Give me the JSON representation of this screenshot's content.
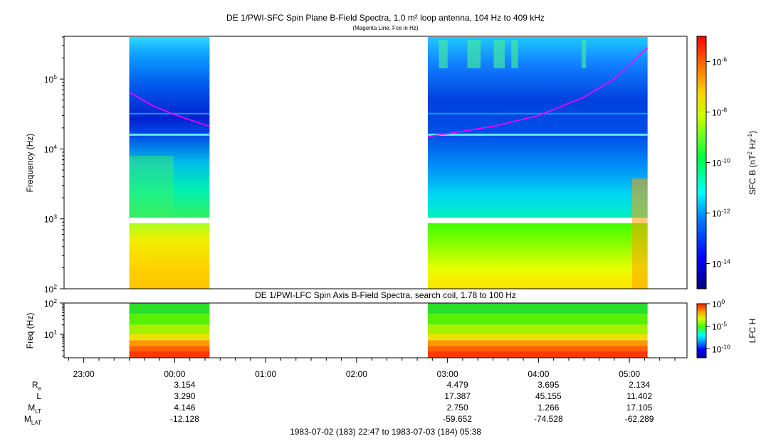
{
  "chart_data": [
    {
      "type": "heatmap",
      "title": "DE 1/PWI-SFC  Spin Plane B-Field Spectra, 1.0 m² loop antenna, 104 Hz to 409 kHz",
      "subtitle": "(Magenta Line: Fce in Hz)",
      "ylabel": "Frequency (Hz)",
      "yscale": "log",
      "ylim": [
        100,
        409000
      ],
      "y_ticks": [
        "10^2",
        "10^3",
        "10^4",
        "10^5"
      ],
      "colorbar": {
        "label": "SFC B (nT^2 Hz^-1)",
        "scale": "log",
        "range": [
          1e-15,
          1e-05
        ],
        "ticks": [
          "10^-14",
          "10^-12",
          "10^-10",
          "10^-8",
          "10^-6"
        ]
      },
      "data_blocks": [
        {
          "start": "23:30",
          "end": "00:23"
        },
        {
          "start": "02:47",
          "end": "05:12"
        }
      ],
      "series": [
        {
          "name": "Fce",
          "color": "#ff00ff",
          "segments": [
            {
              "x": [
                "23:30",
                "23:45",
                "00:00",
                "00:15",
                "00:23"
              ],
              "y": [
                65000,
                42000,
                31000,
                24000,
                21000
              ]
            },
            {
              "x": [
                "02:47",
                "03:00",
                "03:30",
                "04:00",
                "04:30",
                "04:50",
                "05:12"
              ],
              "y": [
                15000,
                16500,
                21000,
                30000,
                55000,
                100000,
                280000
              ]
            }
          ]
        }
      ]
    },
    {
      "type": "heatmap",
      "title": "DE 1/PWI-LFC  Spin Axis B-Field Spectra, search coil, 1.78 to 100 Hz",
      "ylabel": "Freq (Hz)",
      "yscale": "log",
      "ylim": [
        1.78,
        100
      ],
      "y_ticks": [
        "10^1",
        "10^2"
      ],
      "colorbar": {
        "label": "LFC H",
        "scale": "log",
        "range": [
          1e-12,
          1
        ],
        "ticks": [
          "10^0",
          "10^-5",
          "10^-10"
        ]
      },
      "data_blocks": [
        {
          "start": "23:30",
          "end": "00:23"
        },
        {
          "start": "02:47",
          "end": "05:12"
        }
      ]
    }
  ],
  "x_axis": {
    "ticks": [
      "23:00",
      "00:00",
      "01:00",
      "02:00",
      "03:00",
      "04:00",
      "05:00"
    ],
    "range": [
      "1983-07-02 22:47",
      "1983-07-03 05:38"
    ]
  },
  "ephemeris": {
    "rows": [
      {
        "label": "R",
        "sub": "e",
        "values": [
          "3.154",
          "4.479",
          "3.695",
          "2.134"
        ]
      },
      {
        "label": "L",
        "sub": "",
        "values": [
          "3.290",
          "17.387",
          "45.155",
          "11.402"
        ]
      },
      {
        "label": "M",
        "sub": "LT",
        "values": [
          "4.146",
          "2.750",
          "1.266",
          "17.105"
        ]
      },
      {
        "label": "M",
        "sub": "LAT",
        "values": [
          "-12.128",
          "-59.652",
          "-74.528",
          "-62.289"
        ]
      }
    ],
    "times": [
      "00:00",
      "03:00",
      "04:00",
      "05:00"
    ]
  },
  "time_range": "1983-07-02 (183) 22:47 to 1983-07-03 (184) 05:38"
}
